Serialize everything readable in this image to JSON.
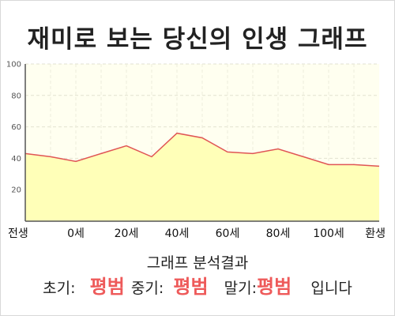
{
  "title": "재미로 보는 당신의 인생 그래프",
  "chart_data": {
    "type": "area",
    "title": "재미로 보는 당신의 인생 그래프",
    "xlabel": "",
    "ylabel": "",
    "ylim": [
      0,
      100
    ],
    "yticks": [
      20,
      40,
      60,
      80,
      100
    ],
    "grid": true,
    "x": [
      "전생",
      "",
      "0세",
      "",
      "20세",
      "",
      "40세",
      "",
      "60세",
      "",
      "80세",
      "",
      "100세",
      "",
      "환생"
    ],
    "xtick_labels": [
      "전생",
      "0세",
      "20세",
      "40세",
      "60세",
      "80세",
      "100세",
      "환생"
    ],
    "values": [
      43,
      41,
      38,
      43,
      48,
      41,
      56,
      53,
      44,
      43,
      46,
      41,
      36,
      36,
      35
    ],
    "line_color": "#e05555",
    "fill_color": "#ffffb8",
    "plot_background": "#fffff0"
  },
  "result": {
    "heading": "그래프 분석결과",
    "early_label": "초기:",
    "early_value": "평범",
    "middle_label": "중기:",
    "middle_value": "평범",
    "late_label": "말기:",
    "late_value": "평범",
    "suffix": "입니다"
  }
}
